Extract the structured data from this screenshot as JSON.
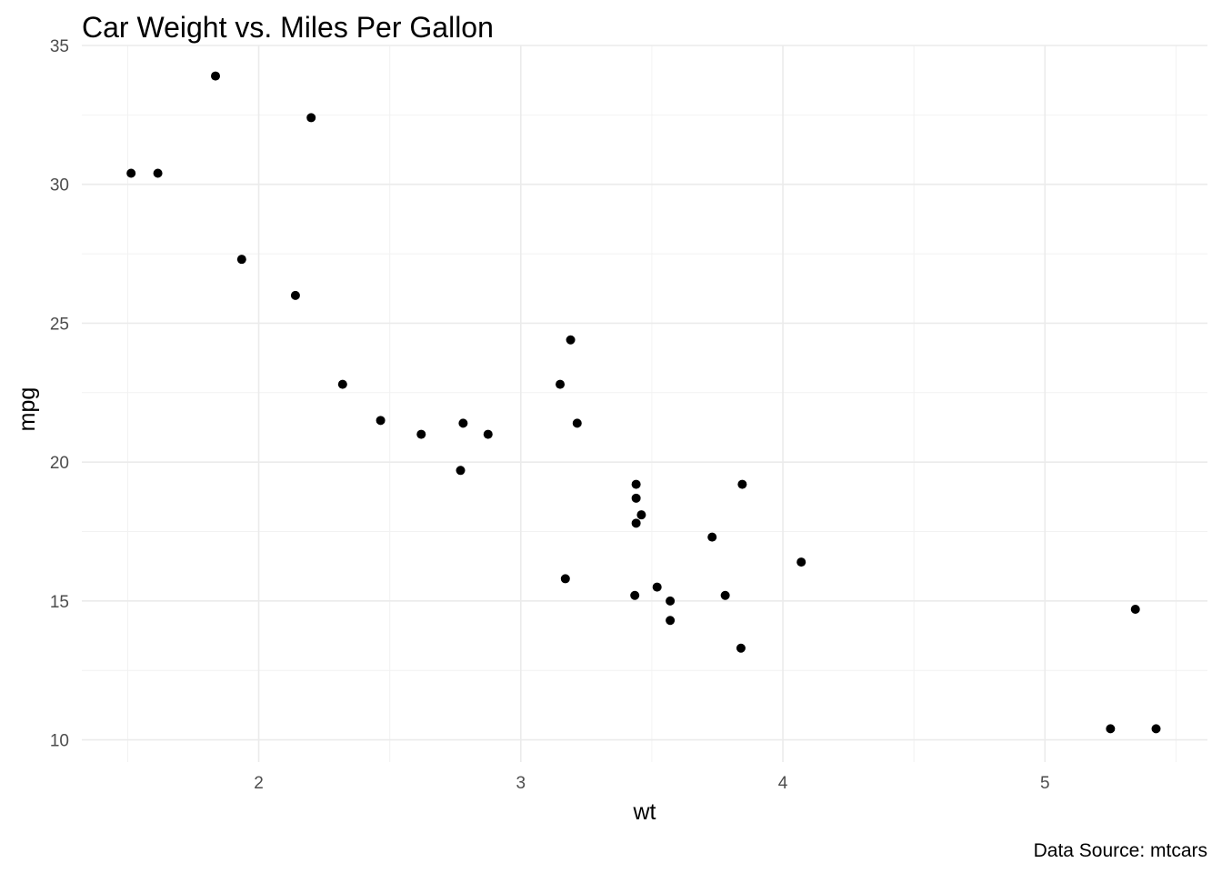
{
  "chart_data": {
    "type": "scatter",
    "title": "Car Weight vs. Miles Per Gallon",
    "xlabel": "wt",
    "ylabel": "mpg",
    "caption": "Data Source: mtcars",
    "xlim": [
      1.325,
      5.62
    ],
    "ylim": [
      9.2,
      35.0
    ],
    "x_ticks": [
      2,
      3,
      4,
      5
    ],
    "x_tick_labels": [
      "2",
      "3",
      "4",
      "5"
    ],
    "y_ticks": [
      10,
      15,
      20,
      25,
      30,
      35
    ],
    "y_tick_labels": [
      "10",
      "15",
      "20",
      "25",
      "30",
      "35"
    ],
    "x_minor": [
      1.5,
      2.5,
      3.5,
      4.5,
      5.5
    ],
    "y_minor": [
      12.5,
      17.5,
      22.5,
      27.5,
      32.5
    ],
    "grid": true,
    "legend": "none",
    "point_color": "#000000",
    "points": [
      {
        "x": 2.62,
        "y": 21.0
      },
      {
        "x": 2.875,
        "y": 21.0
      },
      {
        "x": 2.32,
        "y": 22.8
      },
      {
        "x": 3.215,
        "y": 21.4
      },
      {
        "x": 3.44,
        "y": 18.7
      },
      {
        "x": 3.46,
        "y": 18.1
      },
      {
        "x": 3.57,
        "y": 14.3
      },
      {
        "x": 3.19,
        "y": 24.4
      },
      {
        "x": 3.15,
        "y": 22.8
      },
      {
        "x": 3.44,
        "y": 19.2
      },
      {
        "x": 3.44,
        "y": 17.8
      },
      {
        "x": 4.07,
        "y": 16.4
      },
      {
        "x": 3.73,
        "y": 17.3
      },
      {
        "x": 3.78,
        "y": 15.2
      },
      {
        "x": 5.25,
        "y": 10.4
      },
      {
        "x": 5.424,
        "y": 10.4
      },
      {
        "x": 5.345,
        "y": 14.7
      },
      {
        "x": 2.2,
        "y": 32.4
      },
      {
        "x": 1.615,
        "y": 30.4
      },
      {
        "x": 1.835,
        "y": 33.9
      },
      {
        "x": 2.465,
        "y": 21.5
      },
      {
        "x": 3.52,
        "y": 15.5
      },
      {
        "x": 3.435,
        "y": 15.2
      },
      {
        "x": 3.84,
        "y": 13.3
      },
      {
        "x": 3.845,
        "y": 19.2
      },
      {
        "x": 1.935,
        "y": 27.3
      },
      {
        "x": 2.14,
        "y": 26.0
      },
      {
        "x": 1.513,
        "y": 30.4
      },
      {
        "x": 3.17,
        "y": 15.8
      },
      {
        "x": 2.77,
        "y": 19.7
      },
      {
        "x": 3.57,
        "y": 15.0
      },
      {
        "x": 2.78,
        "y": 21.4
      }
    ]
  }
}
